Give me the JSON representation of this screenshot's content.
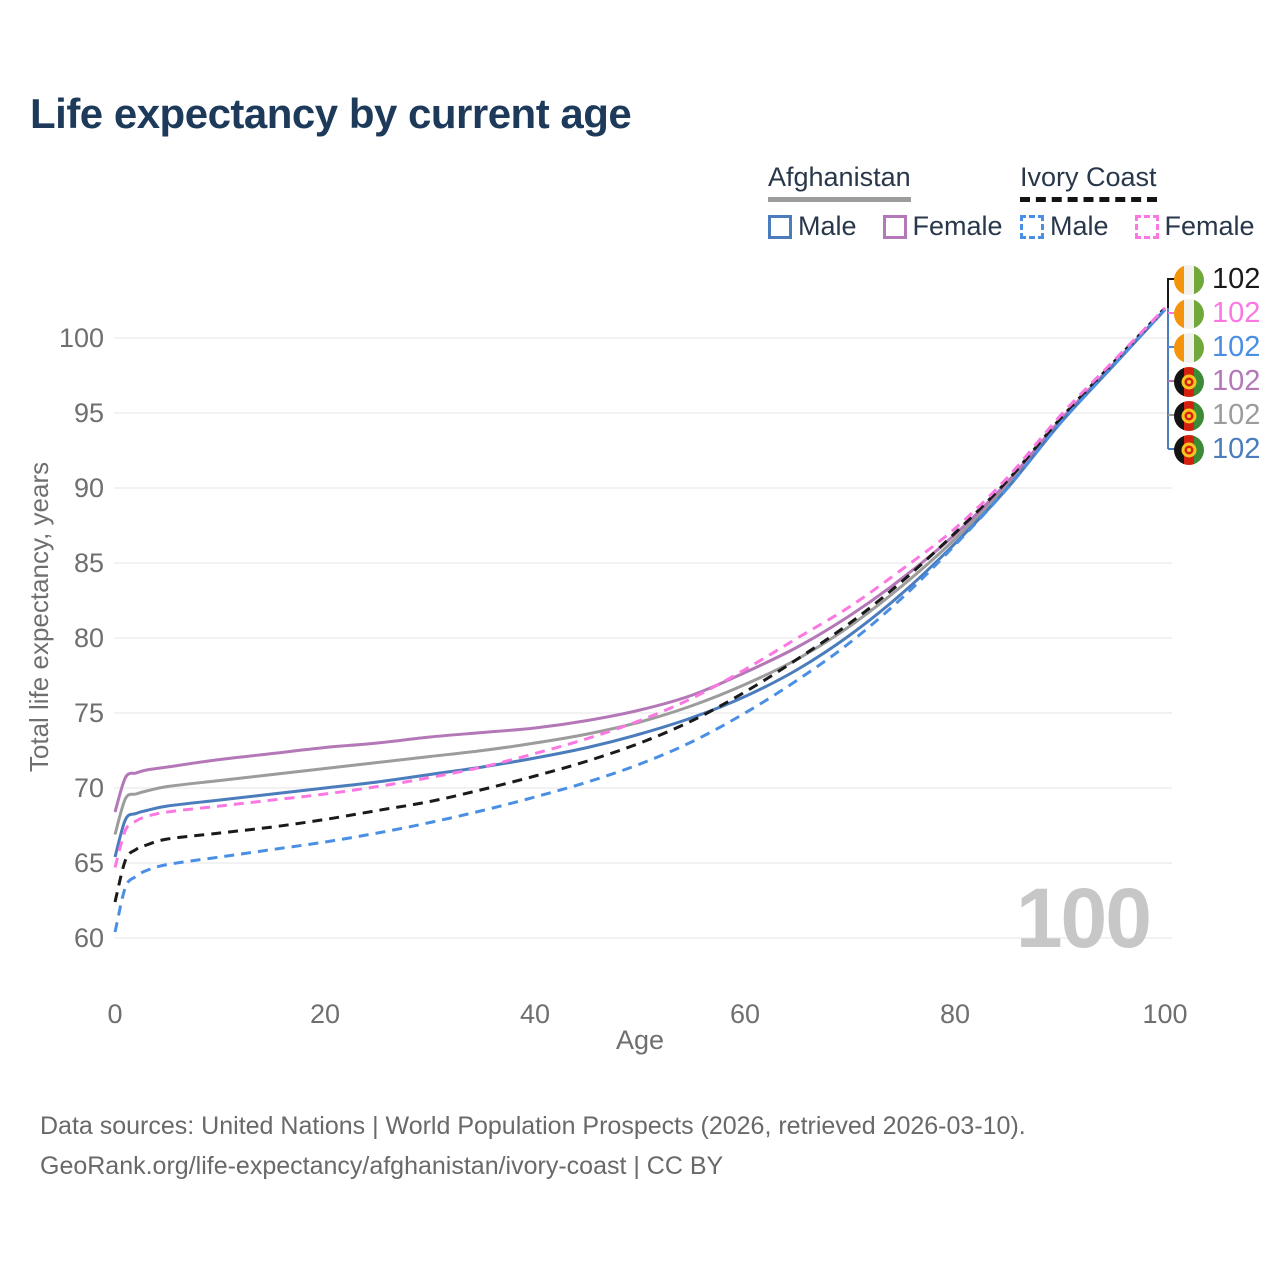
{
  "title": "Life expectancy by current age",
  "watermark": "100",
  "legend": {
    "groups": [
      {
        "label": "Afghanistan",
        "line_style": "solid",
        "underline_color": "#9c9c9c",
        "items": [
          {
            "label": "Male",
            "color": "#4b7cbb"
          },
          {
            "label": "Female",
            "color": "#b478b8"
          }
        ]
      },
      {
        "label": "Ivory Coast",
        "line_style": "dashed",
        "underline_color": "#141414",
        "items": [
          {
            "label": "Male",
            "color": "#4a8fe4"
          },
          {
            "label": "Female",
            "color": "#fb78e2"
          }
        ]
      }
    ]
  },
  "footer": {
    "line1": "Data sources: United Nations | World Population Prospects (2026, retrieved 2026-03-10).",
    "line2": "GeoRank.org/life-expectancy/afghanistan/ivory-coast | CC BY"
  },
  "chart_data": {
    "type": "line",
    "title": "Life expectancy by current age",
    "xlabel": "Age",
    "ylabel": "Total life expectancy, years",
    "xlim": [
      0,
      100
    ],
    "ylim": [
      60,
      102
    ],
    "xticks": [
      0,
      20,
      40,
      60,
      80,
      100
    ],
    "yticks": [
      60,
      65,
      70,
      75,
      80,
      85,
      90,
      95,
      100
    ],
    "grid": "horizontal",
    "ages": [
      0,
      1,
      2,
      3,
      5,
      10,
      15,
      20,
      25,
      30,
      35,
      40,
      45,
      50,
      55,
      60,
      65,
      70,
      75,
      80,
      85,
      90,
      95,
      100
    ],
    "series": [
      {
        "name": "Afghanistan Both sexes",
        "country": "Afghanistan",
        "sex": "both",
        "color": "#9c9c9c",
        "dash": false,
        "values": [
          66.9,
          69.3,
          69.6,
          69.8,
          70.1,
          70.5,
          70.9,
          71.3,
          71.7,
          72.1,
          72.5,
          73.0,
          73.6,
          74.4,
          75.5,
          76.9,
          78.6,
          80.8,
          83.5,
          86.6,
          90.2,
          94.4,
          98.1,
          101.9
        ]
      },
      {
        "name": "Afghanistan Female",
        "country": "Afghanistan",
        "sex": "female",
        "color": "#b478b8",
        "dash": false,
        "values": [
          68.4,
          70.7,
          71.0,
          71.2,
          71.4,
          71.9,
          72.3,
          72.7,
          73.0,
          73.4,
          73.7,
          74.0,
          74.5,
          75.2,
          76.2,
          77.7,
          79.4,
          81.5,
          84.0,
          86.9,
          90.4,
          94.5,
          98.2,
          101.9
        ]
      },
      {
        "name": "Afghanistan Male",
        "country": "Afghanistan",
        "sex": "male",
        "color": "#4b7cbb",
        "dash": false,
        "values": [
          65.4,
          67.9,
          68.3,
          68.5,
          68.8,
          69.2,
          69.6,
          70.0,
          70.4,
          70.9,
          71.4,
          72.0,
          72.7,
          73.6,
          74.7,
          76.1,
          77.9,
          80.2,
          83.0,
          86.3,
          90.0,
          94.3,
          98.1,
          101.9
        ]
      },
      {
        "name": "Ivory Coast Both sexes",
        "country": "Ivory Coast",
        "sex": "both",
        "color": "#1a1a1a",
        "dash": true,
        "values": [
          62.4,
          65.2,
          65.9,
          66.2,
          66.6,
          67.0,
          67.4,
          67.9,
          68.5,
          69.1,
          69.9,
          70.8,
          71.8,
          73.0,
          74.5,
          76.4,
          78.6,
          81.0,
          83.8,
          87.0,
          90.5,
          94.6,
          98.3,
          102.0
        ]
      },
      {
        "name": "Ivory Coast Male",
        "country": "Ivory Coast",
        "sex": "male",
        "color": "#4a8fe4",
        "dash": true,
        "values": [
          60.4,
          63.4,
          64.1,
          64.5,
          64.9,
          65.4,
          65.9,
          66.4,
          67.0,
          67.7,
          68.5,
          69.4,
          70.4,
          71.6,
          73.1,
          75.0,
          77.2,
          79.7,
          82.7,
          86.2,
          90.0,
          94.3,
          98.1,
          101.9
        ]
      },
      {
        "name": "Ivory Coast Female",
        "country": "Ivory Coast",
        "sex": "female",
        "color": "#fb78e2",
        "dash": true,
        "values": [
          64.7,
          67.2,
          67.8,
          68.1,
          68.4,
          68.8,
          69.2,
          69.6,
          70.1,
          70.7,
          71.4,
          72.3,
          73.3,
          74.5,
          76.0,
          77.9,
          80.0,
          82.1,
          84.6,
          87.3,
          90.7,
          94.8,
          98.4,
          102.0
        ]
      }
    ],
    "end_labels": [
      {
        "series": "Ivory Coast Both sexes",
        "flag": "ci",
        "value": "102",
        "color": "#1a1a1a"
      },
      {
        "series": "Ivory Coast Female",
        "flag": "ci",
        "value": "102",
        "color": "#fb78e2"
      },
      {
        "series": "Ivory Coast Male",
        "flag": "ci",
        "value": "102",
        "color": "#4a8fe4"
      },
      {
        "series": "Afghanistan Female",
        "flag": "af",
        "value": "102",
        "color": "#b478b8"
      },
      {
        "series": "Afghanistan Both sexes",
        "flag": "af",
        "value": "102",
        "color": "#9c9c9c"
      },
      {
        "series": "Afghanistan Male",
        "flag": "af",
        "value": "102",
        "color": "#4b7cbb"
      }
    ],
    "tick_color": "#6f6f6f",
    "grid_color": "#e9e9e9"
  }
}
